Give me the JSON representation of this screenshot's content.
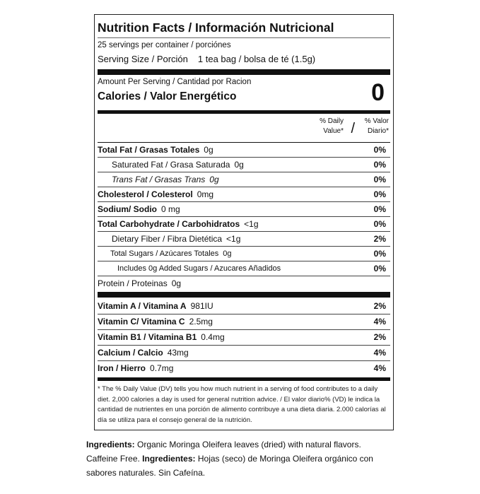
{
  "title": "Nutrition Facts / Información Nutricional",
  "servings": "25 servings per container / porciónes",
  "serving_size": {
    "label": "Serving Size / Porción",
    "value": "1 tea bag / bolsa de té (1.5g)"
  },
  "amount_per_serving": "Amount Per Serving / Cantidad por Racion",
  "calories": {
    "label": "Calories / Valor Energético",
    "value": "0"
  },
  "dv_header": {
    "left1": "% Daily",
    "left2": "Value*",
    "slash": "/",
    "right1": "% Valor",
    "right2": "Diario*"
  },
  "nutrients": [
    {
      "label": "Total Fat / Grasas Totales",
      "amount": "0g",
      "dv": "0%",
      "style": "bold",
      "indent": ""
    },
    {
      "label": "Saturated Fat / Grasa Saturada",
      "amount": "0g",
      "dv": "0%",
      "style": "",
      "indent": "i1"
    },
    {
      "label": "Trans Fat / Grasas Trans",
      "amount": "0g",
      "dv": "0%",
      "style": "it",
      "indent": "i1"
    },
    {
      "label": "Cholesterol / Colesterol",
      "amount": "0mg",
      "dv": "0%",
      "style": "bold",
      "indent": ""
    },
    {
      "label": "Sodium/ Sodio",
      "amount": "0 mg",
      "dv": "0%",
      "style": "bold",
      "indent": ""
    },
    {
      "label": "Total Carbohydrate / Carbohidratos",
      "amount": "<1g",
      "dv": "0%",
      "style": "bold",
      "indent": ""
    },
    {
      "label": "Dietary Fiber / Fibra Dietética",
      "amount": "<1g",
      "dv": "2%",
      "style": "",
      "indent": "i1"
    },
    {
      "label": "Total Sugars / Azúcares Totales",
      "amount": "0g",
      "dv": "0%",
      "style": "",
      "indent": "i2"
    },
    {
      "label": "Includes 0g Added Sugars / Azucares Añadidos",
      "amount": "",
      "dv": "0%",
      "style": "",
      "indent": "i3"
    },
    {
      "label": "Protein / Proteinas",
      "amount": "0g",
      "dv": "",
      "style": "",
      "indent": ""
    }
  ],
  "vitamins": [
    {
      "label": "Vitamin A / Vitamina A",
      "amount": "981IU",
      "dv": "2%"
    },
    {
      "label": "Vitamin C/ Vitamina C",
      "amount": "2.5mg",
      "dv": "4%"
    },
    {
      "label": "Vitamin B1 / Vitamina B1",
      "amount": "0.4mg",
      "dv": "2%"
    },
    {
      "label": "Calcium / Calcio",
      "amount": "43mg",
      "dv": "4%"
    },
    {
      "label": "Iron / Hierro",
      "amount": "0.7mg",
      "dv": "4%"
    }
  ],
  "footnote": "* The % Daily Value (DV) tells you how much nutrient in a serving of food contributes to a daily diet. 2,000 calories a day is used for general nutrition advice. / El valor diario% (VD) le indica la cantidad de nutrientes en una porción de alimento contribuye a una dieta diaria. 2.000 calorías al día se utiliza para el consejo general de la nutrición.",
  "ingredients": {
    "en_label": "Ingredients:",
    "en_text": " Organic Moringa Oleifera leaves (dried) with natural flavors. Caffeine Free. ",
    "es_label": "Ingredientes:",
    "es_text": " Hojas (seco) de Moringa Oleifera orgánico con sabores naturales. Sin Cafeína."
  }
}
